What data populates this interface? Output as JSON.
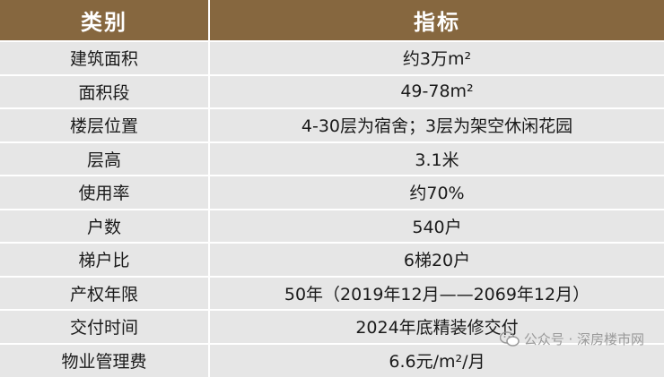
{
  "header": {
    "col1": "类别",
    "col2": "指标"
  },
  "rows": [
    {
      "label": "建筑面积",
      "value": "约3万m²"
    },
    {
      "label": "面积段",
      "value": "49-78m²"
    },
    {
      "label": "楼层位置",
      "value": "4-30层为宿舍；3层为架空休闲花园"
    },
    {
      "label": "层高",
      "value": "3.1米"
    },
    {
      "label": "使用率",
      "value": "约70%"
    },
    {
      "label": "户数",
      "value": "540户"
    },
    {
      "label": "梯户比",
      "value": "6梯20户"
    },
    {
      "label": "产权年限",
      "value": "50年（2019年12月——2069年12月）"
    },
    {
      "label": "交付时间",
      "value": "2024年底精装修交付"
    },
    {
      "label": "物业管理费",
      "value": "6.6元/m²/月"
    }
  ],
  "watermark": {
    "text": "公众号 · 深房楼市网",
    "icon": "wechat-icon"
  },
  "colors": {
    "header_bg": "#86673f",
    "row_bg": "#e6e6e6"
  }
}
